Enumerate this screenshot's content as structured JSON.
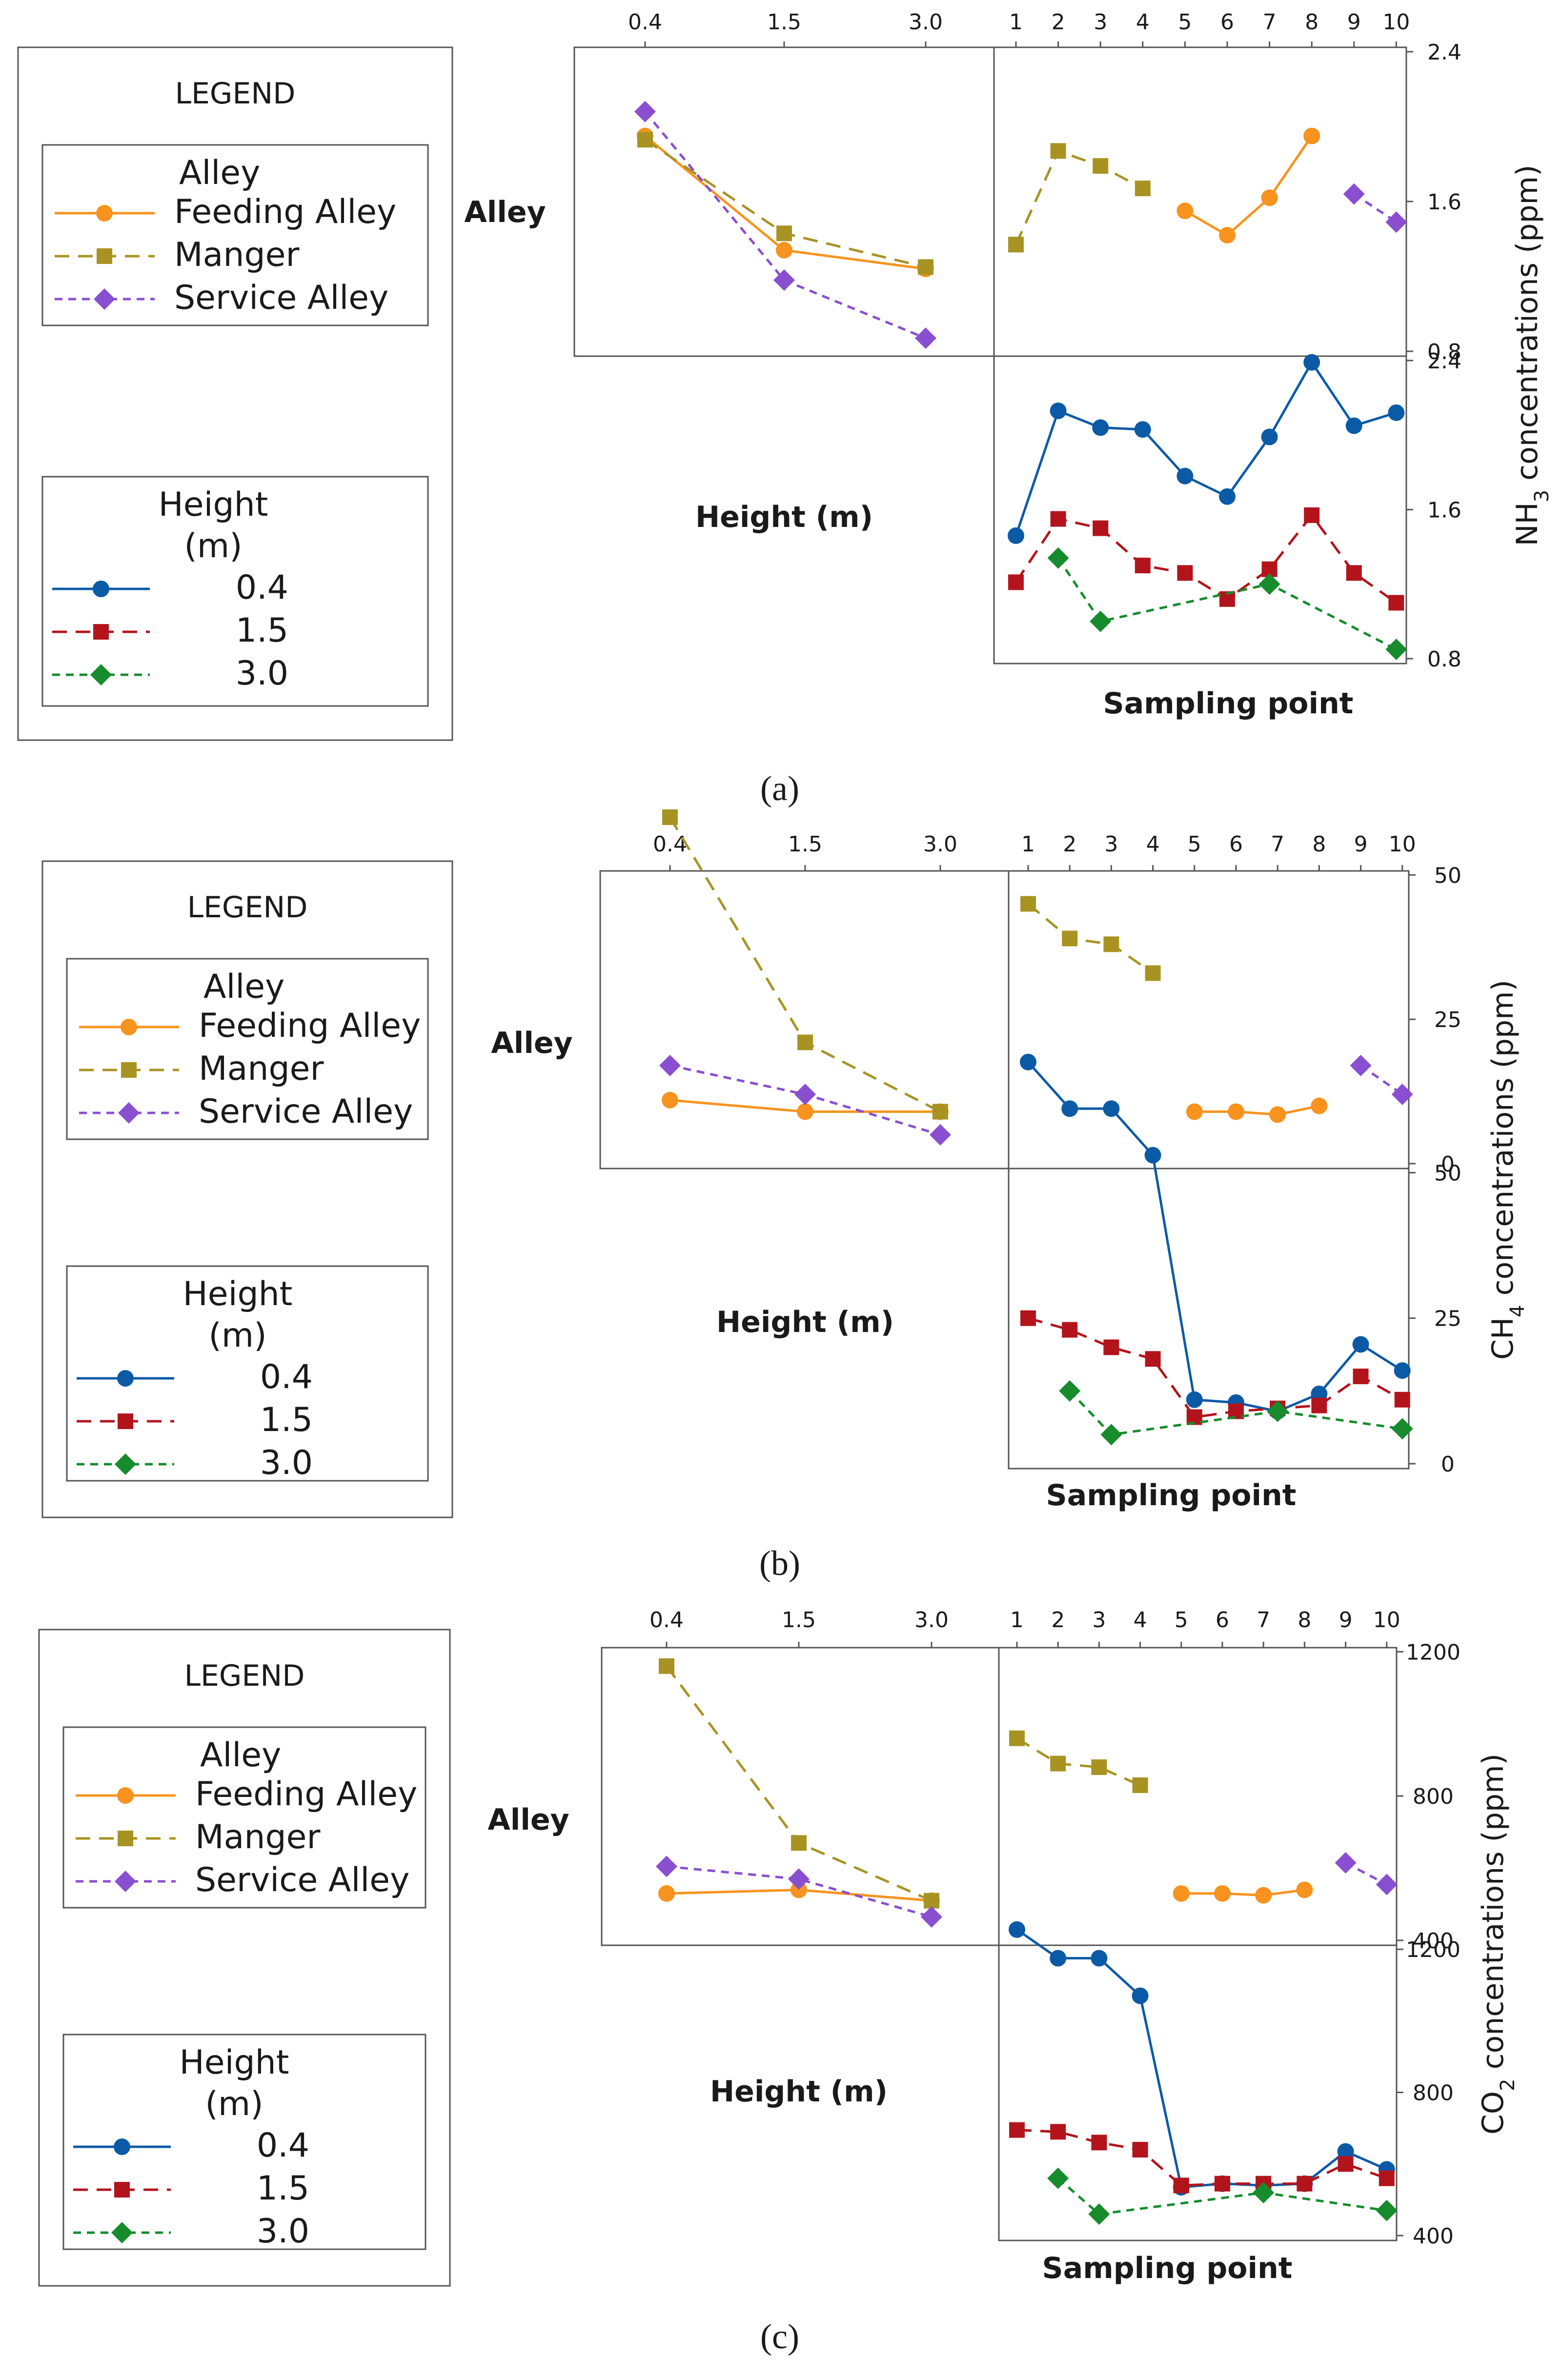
{
  "legend": {
    "title": "LEGEND",
    "alley_title": "Alley",
    "height_title_1": "Height",
    "height_title_2": "(m)",
    "alley_items": [
      "Feeding Alley",
      "Manger",
      "Service Alley"
    ],
    "height_items": [
      "0.4",
      "1.5",
      "3.0"
    ]
  },
  "colors": {
    "Feeding Alley": "#f7931e",
    "Manger": "#a89322",
    "Service Alley": "#8a4fd0",
    "0.4": "#0b5aa6",
    "1.5": "#b3141b",
    "3.0": "#168c2c"
  },
  "row_label": "Alley",
  "col_label": "Height (m)",
  "x_label": "Sampling point",
  "height_ticks": [
    "0.4",
    "1.5",
    "3.0"
  ],
  "point_ticks": [
    "1",
    "2",
    "3",
    "4",
    "5",
    "6",
    "7",
    "8",
    "9",
    "10"
  ],
  "chart_data": [
    {
      "type": "line",
      "caption": "(a)",
      "ylabel_main": "NH",
      "ylabel_sub": "3",
      "ylabel_rest": " concentrations (ppm)",
      "ylim": [
        0.8,
        2.4
      ],
      "yticks": [
        "2.4",
        "1.6",
        "0.8"
      ],
      "yticks_bottom": [
        "2.4",
        "1.6",
        "0.8"
      ],
      "height_by_alley": [
        {
          "name": "Feeding Alley",
          "values": [
            1.95,
            1.34,
            1.24
          ]
        },
        {
          "name": "Manger",
          "values": [
            1.93,
            1.43,
            1.25
          ]
        },
        {
          "name": "Service Alley",
          "values": [
            2.08,
            1.18,
            0.87
          ]
        }
      ],
      "point_by_alley": [
        {
          "name": "Feeding Alley",
          "x": [
            5,
            6,
            7,
            8
          ],
          "values": [
            1.55,
            1.42,
            1.62,
            1.95
          ]
        },
        {
          "name": "Manger",
          "x": [
            1,
            2,
            3,
            4
          ],
          "values": [
            1.37,
            1.87,
            1.79,
            1.67
          ]
        },
        {
          "name": "Service Alley",
          "x": [
            9,
            10
          ],
          "values": [
            1.64,
            1.49
          ]
        }
      ],
      "point_by_height": [
        {
          "name": "0.4",
          "x": [
            1,
            2,
            3,
            4,
            5,
            6,
            7,
            8,
            9,
            10
          ],
          "values": [
            1.46,
            2.13,
            2.04,
            2.03,
            1.78,
            1.67,
            1.99,
            2.39,
            2.05,
            2.12
          ]
        },
        {
          "name": "1.5",
          "x": [
            1,
            2,
            3,
            4,
            5,
            6,
            7,
            8,
            9,
            10
          ],
          "values": [
            1.21,
            1.55,
            1.5,
            1.3,
            1.26,
            1.12,
            1.28,
            1.57,
            1.26,
            1.1
          ]
        },
        {
          "name": "3.0",
          "x": [
            2,
            3,
            7,
            10
          ],
          "values": [
            1.34,
            1.0,
            1.2,
            0.85
          ]
        }
      ]
    },
    {
      "type": "line",
      "caption": "(b)",
      "ylabel_main": "CH",
      "ylabel_sub": "4",
      "ylabel_rest": " concentrations (ppm)",
      "ylim": [
        0,
        50
      ],
      "yticks": [
        "50",
        "25",
        "0"
      ],
      "yticks_bottom": [
        "50",
        "25",
        "0"
      ],
      "height_by_alley": [
        {
          "name": "Feeding Alley",
          "values": [
            11,
            9,
            9
          ]
        },
        {
          "name": "Manger",
          "values": [
            60,
            21,
            9
          ]
        },
        {
          "name": "Service Alley",
          "values": [
            17,
            12,
            5
          ]
        }
      ],
      "point_by_alley": [
        {
          "name": "Feeding Alley",
          "x": [
            5,
            6,
            7,
            8
          ],
          "values": [
            9,
            9,
            8.5,
            10
          ]
        },
        {
          "name": "Manger",
          "x": [
            1,
            2,
            3,
            4
          ],
          "values": [
            45,
            39,
            38,
            33
          ]
        },
        {
          "name": "Service Alley",
          "x": [
            9,
            10
          ],
          "values": [
            17,
            12
          ]
        }
      ],
      "point_by_height": [
        {
          "name": "0.4",
          "x": [
            1,
            2,
            3,
            4,
            5,
            6,
            7,
            8,
            9,
            10
          ],
          "values": [
            69,
            61,
            61,
            53,
            11,
            10.5,
            9,
            12,
            20.5,
            16
          ]
        },
        {
          "name": "1.5",
          "x": [
            1,
            2,
            3,
            4,
            5,
            6,
            7,
            8,
            9,
            10
          ],
          "values": [
            25,
            23,
            20,
            18,
            8,
            9,
            9.5,
            10,
            15,
            11
          ]
        },
        {
          "name": "3.0",
          "x": [
            2,
            3,
            7,
            10
          ],
          "values": [
            12.5,
            5,
            9,
            6
          ]
        }
      ]
    },
    {
      "type": "line",
      "caption": "(c)",
      "ylabel_main": "CO",
      "ylabel_sub": "2",
      "ylabel_rest": " concentrations (ppm)",
      "ylim": [
        400,
        1200
      ],
      "yticks": [
        "1200",
        "800",
        "400"
      ],
      "yticks_bottom": [
        "1200",
        "800",
        "400"
      ],
      "height_by_alley": [
        {
          "name": "Feeding Alley",
          "values": [
            530,
            540,
            510
          ]
        },
        {
          "name": "Manger",
          "values": [
            1160,
            670,
            510
          ]
        },
        {
          "name": "Service Alley",
          "values": [
            605,
            570,
            465
          ]
        }
      ],
      "point_by_alley": [
        {
          "name": "Feeding Alley",
          "x": [
            5,
            6,
            7,
            8
          ],
          "values": [
            530,
            530,
            525,
            540
          ]
        },
        {
          "name": "Manger",
          "x": [
            1,
            2,
            3,
            4
          ],
          "values": [
            960,
            890,
            880,
            830
          ]
        },
        {
          "name": "Service Alley",
          "x": [
            9,
            10
          ],
          "values": [
            615,
            555
          ]
        }
      ],
      "point_by_height": [
        {
          "name": "0.4",
          "x": [
            1,
            2,
            3,
            4,
            5,
            6,
            7,
            8,
            9,
            10
          ],
          "values": [
            1255,
            1175,
            1175,
            1070,
            535,
            545,
            540,
            545,
            635,
            585
          ]
        },
        {
          "name": "1.5",
          "x": [
            1,
            2,
            3,
            4,
            5,
            6,
            7,
            8,
            9,
            10
          ],
          "values": [
            695,
            690,
            660,
            640,
            540,
            545,
            545,
            545,
            600,
            560
          ]
        },
        {
          "name": "3.0",
          "x": [
            2,
            3,
            7,
            10
          ],
          "values": [
            560,
            460,
            520,
            470
          ]
        }
      ]
    }
  ]
}
